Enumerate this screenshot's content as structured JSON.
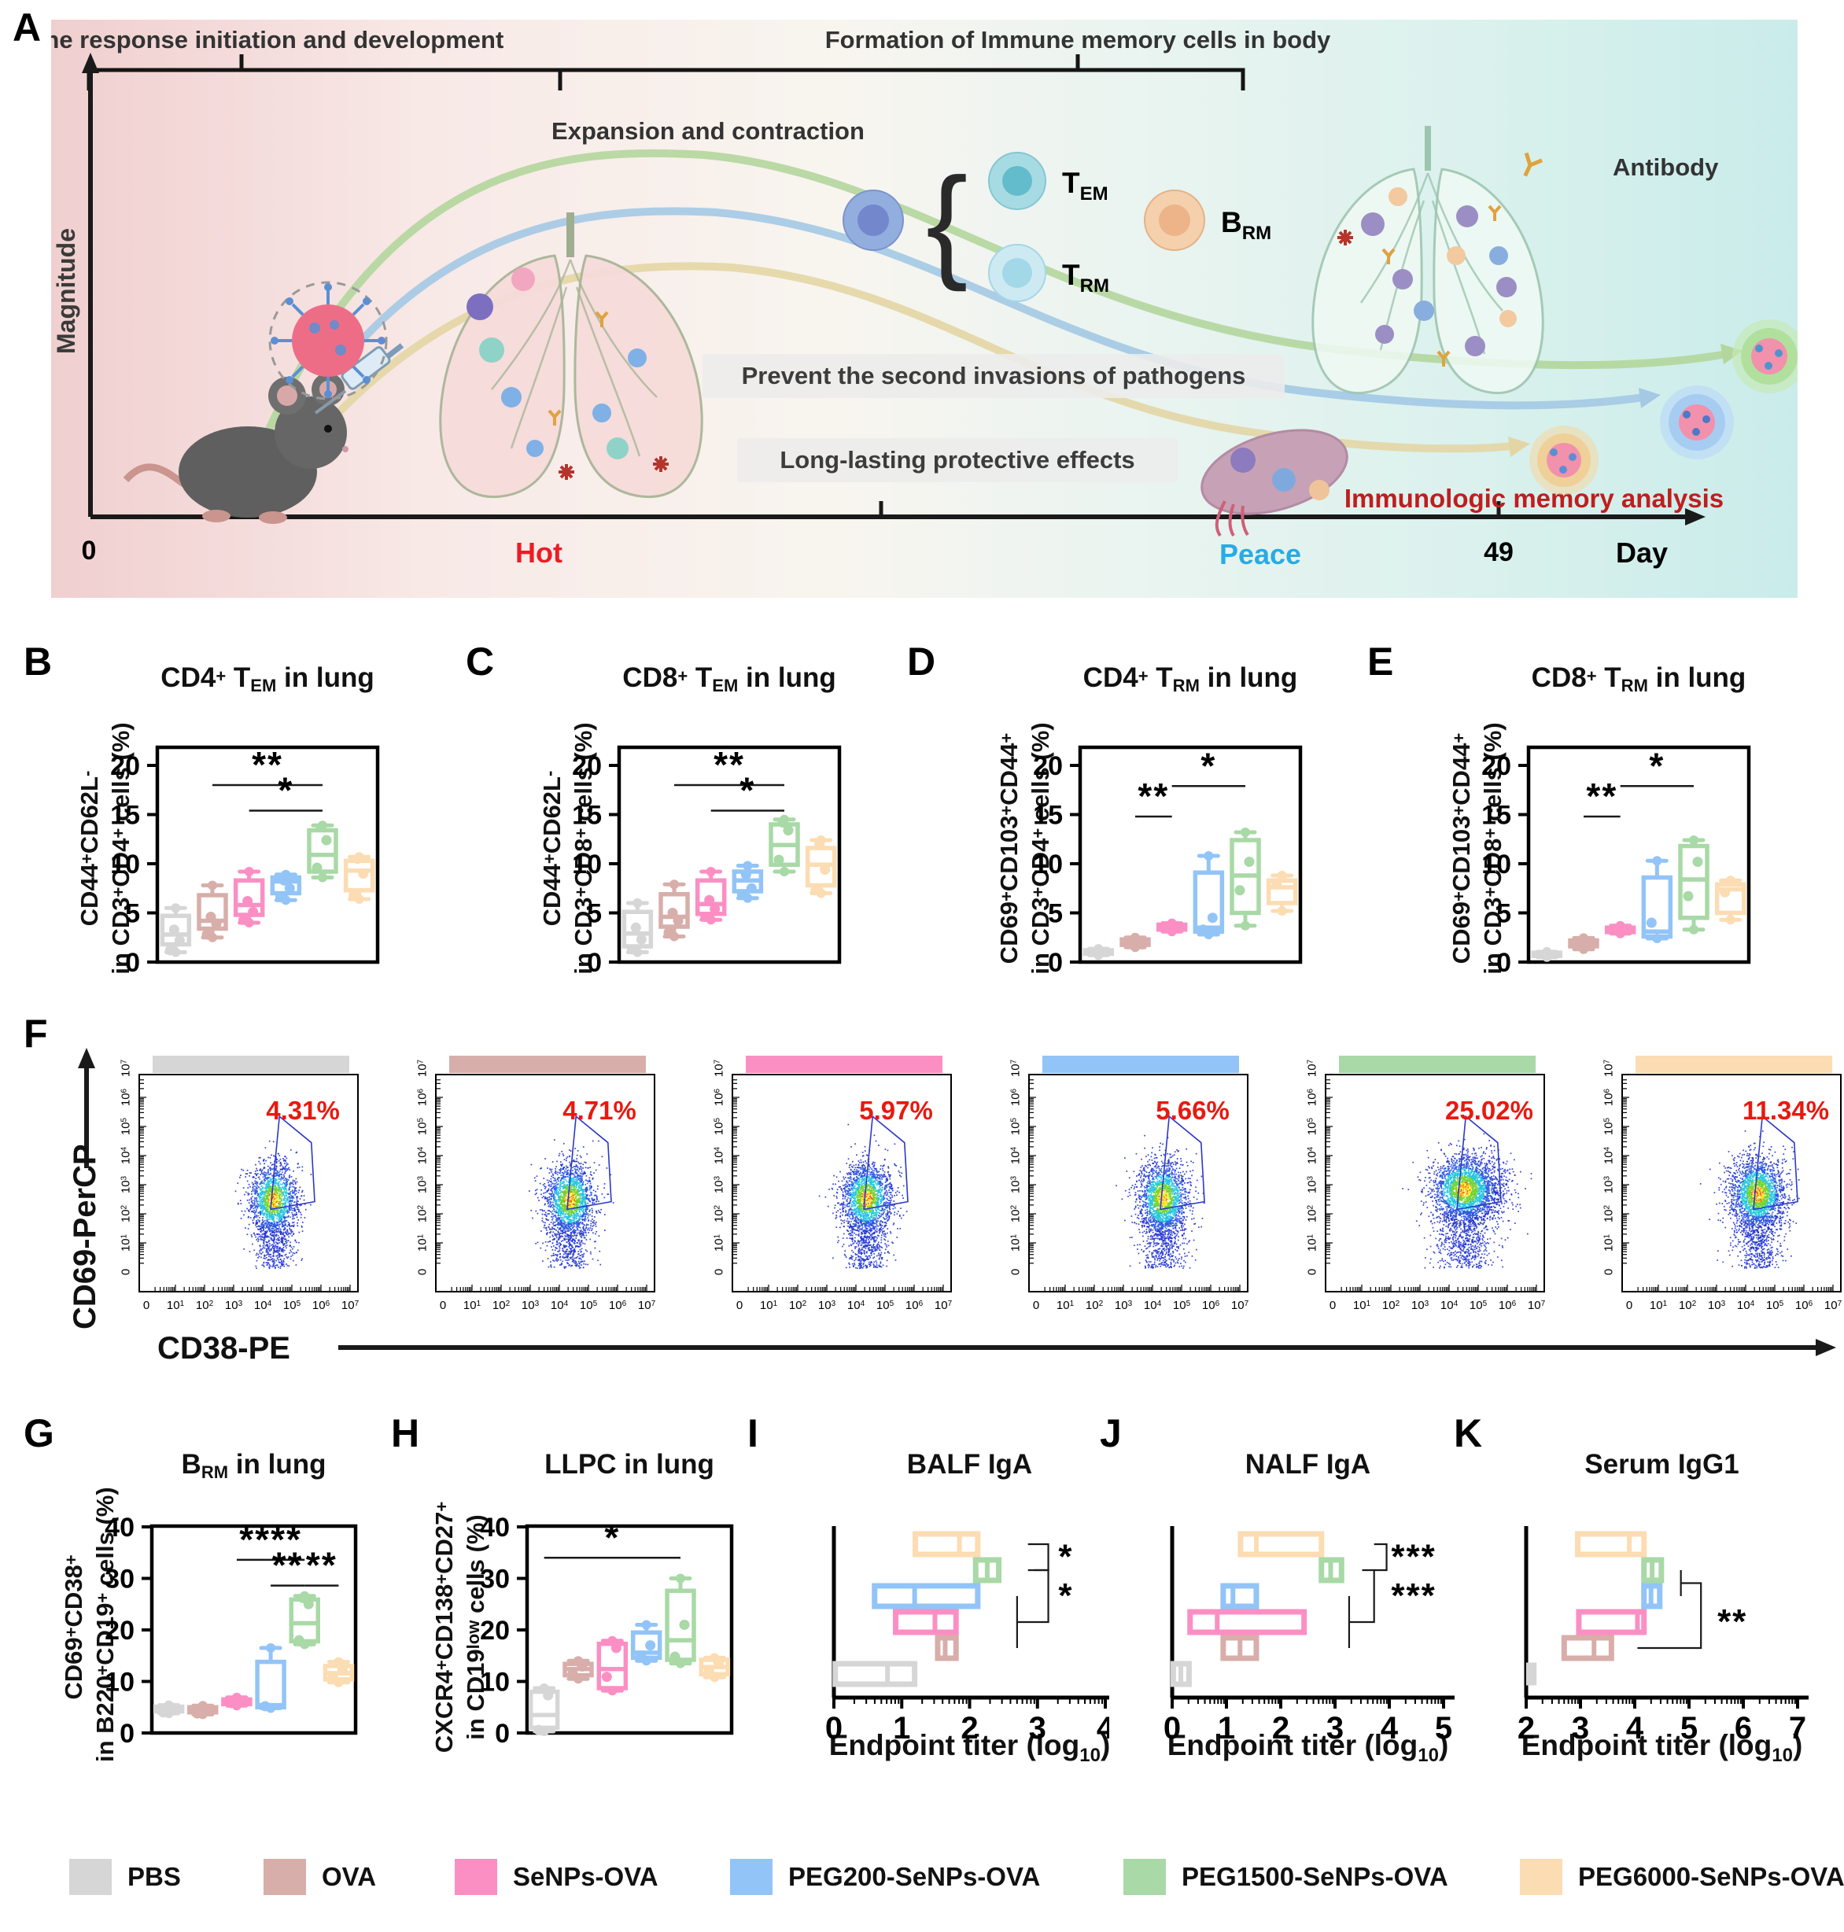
{
  "groups": [
    {
      "name": "PBS",
      "color": "#d6d6d6"
    },
    {
      "name": "OVA",
      "color": "#d8aeaa"
    },
    {
      "name": "SeNPs-OVA",
      "color": "#fb8fc3"
    },
    {
      "name": "PEG200-SeNPs-OVA",
      "color": "#92c4f7"
    },
    {
      "name": "PEG1500-SeNPs-OVA",
      "color": "#a8d9a6"
    },
    {
      "name": "PEG6000-SeNPs-OVA",
      "color": "#fcdcb2"
    }
  ],
  "panel_a": {
    "label": "A",
    "y_axis": "Magnitude",
    "heading_left": "Immune response initiation and development",
    "heading_right": "Formation of Immune memory cells in body",
    "expansion": "Expansion and contraction",
    "cells": {
      "tem": [
        "T",
        "EM"
      ],
      "trm": [
        "T",
        "RM"
      ],
      "brm": [
        "B",
        "RM"
      ]
    },
    "antibody": "Antibody",
    "box1": "Prevent the second invasions of pathogens",
    "box2": "Long-lasting protective effects",
    "memory": "Immunologic memory  analysis",
    "x_origin": "0",
    "hot": "Hot",
    "peace": "Peace",
    "day_num": "49",
    "day": "Day",
    "colors": {
      "hot": "#ed1c24",
      "peace": "#29abe2",
      "memory": "#bf1e1e"
    }
  },
  "flow": {
    "label": "F",
    "ylabel": "CD69-PerCP",
    "xlabel": "CD38-PE",
    "xticks": [
      "0",
      "10^{1}",
      "10^{2}",
      "10^{3}",
      "10^{4}",
      "10^{5}",
      "10^{6}",
      "10^{7}"
    ],
    "yticks": [
      "0",
      "10^{1}",
      "10^{2}",
      "10^{3}",
      "10^{4}",
      "10^{5}",
      "10^{6}",
      "10^{7}"
    ],
    "plots": [
      {
        "group": "PBS",
        "pct": "4.31%"
      },
      {
        "group": "OVA",
        "pct": "4.71%"
      },
      {
        "group": "SeNPs-OVA",
        "pct": "5.97%"
      },
      {
        "group": "PEG200-SeNPs-OVA",
        "pct": "5.66%"
      },
      {
        "group": "PEG1500-SeNPs-OVA",
        "pct": "25.02%"
      },
      {
        "group": "PEG6000-SeNPs-OVA",
        "pct": "11.34%"
      }
    ]
  },
  "chart_data": [
    {
      "panel": "B",
      "type": "box",
      "title": "CD4^{+} T_{EM} in lung",
      "ylabel": [
        "CD44^{+}CD62L^{-}",
        "in CD3^{+}CD4^{+} cells (%)"
      ],
      "ylim": [
        0,
        21.8
      ],
      "yticks": [
        0,
        5,
        10,
        15,
        20
      ],
      "categories": [
        "PBS",
        "OVA",
        "SeNPs-OVA",
        "PEG200-SeNPs-OVA",
        "PEG1500-SeNPs-OVA",
        "PEG6000-SeNPs-OVA"
      ],
      "boxes": [
        {
          "lo": 1.0,
          "q1": 1.8,
          "med": 2.8,
          "q3": 4.7,
          "hi": 5.5,
          "pts": [
            1.2,
            2.2,
            3.3
          ]
        },
        {
          "lo": 2.5,
          "q1": 3.4,
          "med": 4.2,
          "q3": 6.8,
          "hi": 7.8,
          "pts": [
            2.8,
            3.9,
            4.6
          ]
        },
        {
          "lo": 4.0,
          "q1": 4.8,
          "med": 5.8,
          "q3": 8.3,
          "hi": 9.2,
          "pts": [
            4.3,
            5.1,
            6.2
          ]
        },
        {
          "lo": 6.3,
          "q1": 7.0,
          "med": 8.2,
          "q3": 8.6,
          "hi": 8.9,
          "pts": [
            6.6,
            7.5,
            8.3
          ]
        },
        {
          "lo": 8.6,
          "q1": 9.2,
          "med": 10.9,
          "q3": 13.4,
          "hi": 13.9,
          "pts": [
            9.6,
            12.4,
            13.7
          ]
        },
        {
          "lo": 6.4,
          "q1": 7.3,
          "med": 9.3,
          "q3": 10.3,
          "hi": 10.7,
          "pts": [
            6.8,
            9.0,
            10.5
          ]
        }
      ],
      "sig": [
        {
          "a": 1,
          "b": 4,
          "y": 18.0,
          "label": "**"
        },
        {
          "a": 2,
          "b": 4,
          "y": 15.4,
          "label": "*"
        }
      ]
    },
    {
      "panel": "C",
      "type": "box",
      "title": "CD8^{+} T_{EM} in lung",
      "ylabel": [
        "CD44^{+}CD62L^{-}",
        "in CD3^{+}CD8^{+} cells (%)"
      ],
      "ylim": [
        0,
        21.8
      ],
      "yticks": [
        0,
        5,
        10,
        15,
        20
      ],
      "categories": [
        "PBS",
        "OVA",
        "SeNPs-OVA",
        "PEG200-SeNPs-OVA",
        "PEG1500-SeNPs-OVA",
        "PEG6000-SeNPs-OVA"
      ],
      "boxes": [
        {
          "lo": 1.0,
          "q1": 1.6,
          "med": 2.9,
          "q3": 5.1,
          "hi": 6.0,
          "pts": [
            1.3,
            2.3,
            3.5
          ]
        },
        {
          "lo": 2.6,
          "q1": 3.6,
          "med": 4.6,
          "q3": 6.9,
          "hi": 7.9,
          "pts": [
            3.0,
            4.2,
            5.0
          ]
        },
        {
          "lo": 4.3,
          "q1": 4.9,
          "med": 5.9,
          "q3": 8.3,
          "hi": 9.2,
          "pts": [
            4.6,
            5.4,
            6.3
          ]
        },
        {
          "lo": 6.5,
          "q1": 7.2,
          "med": 8.3,
          "q3": 9.2,
          "hi": 9.8,
          "pts": [
            6.9,
            7.5,
            8.9
          ]
        },
        {
          "lo": 9.2,
          "q1": 9.9,
          "med": 11.9,
          "q3": 14.0,
          "hi": 14.5,
          "pts": [
            10.4,
            13.4,
            14.2
          ]
        },
        {
          "lo": 7.0,
          "q1": 7.8,
          "med": 9.9,
          "q3": 11.6,
          "hi": 12.4,
          "pts": [
            7.3,
            9.4,
            12.0
          ]
        }
      ],
      "sig": [
        {
          "a": 1,
          "b": 4,
          "y": 18.0,
          "label": "**"
        },
        {
          "a": 2,
          "b": 4,
          "y": 15.4,
          "label": "*"
        }
      ]
    },
    {
      "panel": "D",
      "type": "box",
      "title": "CD4^{+} T_{RM} in lung",
      "ylabel": [
        "CD69^{+}CD103^{+}CD44^{+}",
        "in CD3^{+}CD4^{+} cells (%)"
      ],
      "ylim": [
        0,
        21.8
      ],
      "yticks": [
        0,
        5,
        10,
        15,
        20
      ],
      "categories": [
        "PBS",
        "OVA",
        "SeNPs-OVA",
        "PEG200-SeNPs-OVA",
        "PEG1500-SeNPs-OVA",
        "PEG6000-SeNPs-OVA"
      ],
      "boxes": [
        {
          "lo": 0.7,
          "q1": 0.85,
          "med": 1.0,
          "q3": 1.2,
          "hi": 1.35,
          "pts": []
        },
        {
          "lo": 1.5,
          "q1": 1.75,
          "med": 2.0,
          "q3": 2.3,
          "hi": 2.5,
          "pts": []
        },
        {
          "lo": 3.1,
          "q1": 3.3,
          "med": 3.5,
          "q3": 3.8,
          "hi": 3.95,
          "pts": []
        },
        {
          "lo": 2.8,
          "q1": 3.1,
          "med": 3.5,
          "q3": 9.1,
          "hi": 10.8,
          "pts": [
            3.3,
            4.5
          ]
        },
        {
          "lo": 3.7,
          "q1": 5.0,
          "med": 8.8,
          "q3": 12.4,
          "hi": 13.2,
          "pts": [
            7.3,
            10.2
          ]
        },
        {
          "lo": 5.2,
          "q1": 6.0,
          "med": 7.6,
          "q3": 8.3,
          "hi": 8.8,
          "pts": [
            7.9
          ]
        }
      ],
      "sig": [
        {
          "a": 1,
          "b": 2,
          "y": 14.8,
          "label": "**"
        },
        {
          "a": 2,
          "b": 4,
          "y": 17.9,
          "label": "*"
        }
      ]
    },
    {
      "panel": "E",
      "type": "box",
      "title": "CD8^{+} T_{RM} in lung",
      "ylabel": [
        "CD69^{+}CD103^{+}CD44^{+}",
        "in CD3^{+}CD8^{+} cells (%)"
      ],
      "ylim": [
        0,
        21.8
      ],
      "yticks": [
        0,
        5,
        10,
        15,
        20
      ],
      "categories": [
        "PBS",
        "OVA",
        "SeNPs-OVA",
        "PEG200-SeNPs-OVA",
        "PEG1500-SeNPs-OVA",
        "PEG6000-SeNPs-OVA"
      ],
      "boxes": [
        {
          "lo": 0.5,
          "q1": 0.62,
          "med": 0.78,
          "q3": 0.95,
          "hi": 1.05,
          "pts": []
        },
        {
          "lo": 1.3,
          "q1": 1.6,
          "med": 1.9,
          "q3": 2.2,
          "hi": 2.45,
          "pts": []
        },
        {
          "lo": 2.9,
          "q1": 3.05,
          "med": 3.25,
          "q3": 3.5,
          "hi": 3.7,
          "pts": []
        },
        {
          "lo": 2.4,
          "q1": 2.6,
          "med": 3.1,
          "q3": 8.6,
          "hi": 10.3,
          "pts": [
            4.0
          ]
        },
        {
          "lo": 3.3,
          "q1": 4.5,
          "med": 8.4,
          "q3": 11.8,
          "hi": 12.4,
          "pts": [
            6.7,
            10.2
          ]
        },
        {
          "lo": 4.3,
          "q1": 5.0,
          "med": 7.4,
          "q3": 7.9,
          "hi": 8.3,
          "pts": [
            7.1
          ]
        }
      ],
      "sig": [
        {
          "a": 1,
          "b": 2,
          "y": 14.8,
          "label": "**"
        },
        {
          "a": 2,
          "b": 4,
          "y": 17.9,
          "label": "*"
        }
      ]
    },
    {
      "panel": "G",
      "type": "box",
      "title": "B_{RM} in lung",
      "ylabel": [
        "CD69^{+}CD38^{+}",
        "in B220^{+}CD19^{+} cells (%)"
      ],
      "ylim": [
        0,
        41.9
      ],
      "yticks": [
        0,
        10,
        20,
        30,
        40
      ],
      "categories": [
        "PBS",
        "OVA",
        "SeNPs-OVA",
        "PEG200-SeNPs-OVA",
        "PEG1500-SeNPs-OVA",
        "PEG6000-SeNPs-OVA"
      ],
      "boxes": [
        {
          "lo": 3.8,
          "q1": 4.2,
          "med": 4.6,
          "q3": 5.1,
          "hi": 5.4,
          "pts": [
            4.0,
            4.9
          ]
        },
        {
          "lo": 3.6,
          "q1": 4.0,
          "med": 4.4,
          "q3": 5.0,
          "hi": 5.3,
          "pts": [
            3.8,
            4.7
          ]
        },
        {
          "lo": 5.3,
          "q1": 5.6,
          "med": 6.0,
          "q3": 6.5,
          "hi": 6.9,
          "pts": [
            5.8,
            6.3
          ]
        },
        {
          "lo": 4.8,
          "q1": 5.0,
          "med": 5.4,
          "q3": 13.8,
          "hi": 16.5,
          "pts": [
            5.2
          ]
        },
        {
          "lo": 17.2,
          "q1": 17.8,
          "med": 21.3,
          "q3": 25.9,
          "hi": 26.6,
          "pts": [
            18.0,
            25.0,
            26.2
          ]
        },
        {
          "lo": 9.8,
          "q1": 10.4,
          "med": 11.6,
          "q3": 13.0,
          "hi": 13.8,
          "pts": [
            10.9,
            12.2
          ]
        }
      ],
      "sig": [
        {
          "a": 2,
          "b": 4,
          "y": 33.6,
          "label": "****"
        },
        {
          "a": 3,
          "b": 4,
          "y": 28.6,
          "label": "**"
        },
        {
          "a": 4,
          "b": 5,
          "y": 28.6,
          "label": "**"
        }
      ]
    },
    {
      "panel": "H",
      "type": "box",
      "title": "LLPC in lung",
      "ylabel": [
        "CXCR4^{+}CD138^{+}CD27^{+}",
        "in CD19^{low} cells (%)"
      ],
      "ylim": [
        0,
        41.9
      ],
      "yticks": [
        0,
        10,
        20,
        30,
        40
      ],
      "categories": [
        "PBS",
        "OVA",
        "SeNPs-OVA",
        "PEG200-SeNPs-OVA",
        "PEG1500-SeNPs-OVA",
        "PEG6000-SeNPs-OVA"
      ],
      "boxes": [
        {
          "lo": 0.3,
          "q1": 1.0,
          "med": 3.5,
          "q3": 8.0,
          "hi": 8.7,
          "pts": [
            0.6,
            7.3
          ]
        },
        {
          "lo": 10.5,
          "q1": 11.2,
          "med": 12.4,
          "q3": 13.4,
          "hi": 14.0,
          "pts": [
            11.5,
            12.9
          ]
        },
        {
          "lo": 8.2,
          "q1": 8.7,
          "med": 12.4,
          "q3": 17.3,
          "hi": 17.9,
          "pts": [
            10.9,
            16.5
          ]
        },
        {
          "lo": 14.0,
          "q1": 14.6,
          "med": 15.6,
          "q3": 19.5,
          "hi": 21.0,
          "pts": [
            15.0,
            17.0
          ]
        },
        {
          "lo": 13.5,
          "q1": 14.2,
          "med": 18.0,
          "q3": 27.6,
          "hi": 30.0,
          "pts": [
            14.8,
            21.0
          ]
        },
        {
          "lo": 10.8,
          "q1": 11.4,
          "med": 12.8,
          "q3": 14.2,
          "hi": 14.6,
          "pts": [
            12.1,
            13.5
          ]
        }
      ],
      "sig": [
        {
          "a": 0,
          "b": 4,
          "y": 34.0,
          "label": "*"
        }
      ]
    },
    {
      "panel": "I",
      "type": "hbox",
      "title": "BALF  IgA",
      "xlabel": "Endpoint titer (log_{10})",
      "xlim": [
        0,
        4
      ],
      "xticks": [
        0,
        1,
        2,
        3,
        4
      ],
      "rows": [
        {
          "group": "PEG6000-SeNPs-OVA",
          "q1": 1.2,
          "med": 1.85,
          "q3": 2.12
        },
        {
          "group": "PEG1500-SeNPs-OVA",
          "q1": 2.09,
          "med": 2.26,
          "q3": 2.43
        },
        {
          "group": "PEG200-SeNPs-OVA",
          "q1": 0.6,
          "med": 1.19,
          "q3": 2.12
        },
        {
          "group": "SeNPs-OVA",
          "q1": 0.91,
          "med": 1.49,
          "q3": 1.8
        },
        {
          "group": "OVA",
          "q1": 1.53,
          "med": 1.64,
          "q3": 1.8
        },
        {
          "group": "PBS",
          "q1": 0.02,
          "med": 0.79,
          "q3": 1.19
        }
      ],
      "sig": [
        {
          "label": "*",
          "lx": 3.42,
          "lr": 0.5,
          "lines": [
            [
              [
                2.86,
                0
              ],
              [
                3.16,
                0
              ],
              [
                3.16,
                1
              ],
              [
                2.86,
                1
              ]
            ]
          ]
        },
        {
          "label": "*",
          "lx": 3.42,
          "lr": 2.0,
          "lines": [
            [
              [
                2.7,
                2
              ],
              [
                2.7,
                4
              ]
            ],
            [
              [
                2.95,
                1
              ],
              [
                3.16,
                1
              ],
              [
                3.16,
                3
              ],
              [
                2.7,
                3
              ]
            ]
          ]
        }
      ]
    },
    {
      "panel": "J",
      "type": "hbox",
      "title": "NALF  IgA",
      "xlabel": "Endpoint titer (log_{10})",
      "xlim": [
        0,
        5
      ],
      "xticks": [
        0,
        1,
        2,
        3,
        4,
        5
      ],
      "rows": [
        {
          "group": "PEG6000-SeNPs-OVA",
          "q1": 1.26,
          "med": 1.55,
          "q3": 2.75
        },
        {
          "group": "PEG1500-SeNPs-OVA",
          "q1": 2.75,
          "med": 2.92,
          "q3": 3.12
        },
        {
          "group": "PEG200-SeNPs-OVA",
          "q1": 0.94,
          "med": 1.12,
          "q3": 1.55
        },
        {
          "group": "SeNPs-OVA",
          "q1": 0.33,
          "med": 0.83,
          "q3": 2.43
        },
        {
          "group": "OVA",
          "q1": 0.94,
          "med": 1.25,
          "q3": 1.55
        },
        {
          "group": "PBS",
          "q1": 0.02,
          "med": 0.16,
          "q3": 0.31
        }
      ],
      "sig": [
        {
          "label": "***",
          "lx": 4.45,
          "lr": 0.5,
          "lines": [
            [
              [
                3.72,
                0
              ],
              [
                3.95,
                0
              ],
              [
                3.95,
                1
              ],
              [
                3.72,
                1
              ]
            ]
          ]
        },
        {
          "label": "***",
          "lx": 4.45,
          "lr": 2.0,
          "lines": [
            [
              [
                3.26,
                2
              ],
              [
                3.26,
                4
              ]
            ],
            [
              [
                3.5,
                1
              ],
              [
                3.72,
                1
              ],
              [
                3.72,
                3
              ],
              [
                3.26,
                3
              ]
            ]
          ]
        }
      ]
    },
    {
      "panel": "K",
      "type": "hbox",
      "title": "Serum  IgG1",
      "xlabel": "Endpoint titer (log_{10})",
      "xlim": [
        2,
        7
      ],
      "xticks": [
        2,
        3,
        4,
        5,
        6,
        7
      ],
      "rows": [
        {
          "group": "PEG6000-SeNPs-OVA",
          "q1": 2.95,
          "med": 3.9,
          "q3": 4.17
        },
        {
          "group": "PEG1500-SeNPs-OVA",
          "q1": 4.17,
          "med": 4.32,
          "q3": 4.49
        },
        {
          "group": "PEG200-SeNPs-OVA",
          "q1": 4.17,
          "med": 4.3,
          "q3": 4.46
        },
        {
          "group": "SeNPs-OVA",
          "q1": 2.97,
          "med": 4.05,
          "q3": 4.17
        },
        {
          "group": "OVA",
          "q1": 2.7,
          "med": 3.25,
          "q3": 3.57
        },
        {
          "group": "PBS",
          "q1": 2.02,
          "med": 2.1,
          "q3": 2.17,
          "fill": true
        }
      ],
      "sig": [
        {
          "label": "**",
          "lx": 5.8,
          "lr": 3.0,
          "lines": [
            [
              [
                4.85,
                1
              ],
              [
                4.85,
                2
              ]
            ],
            [
              [
                4.85,
                1.5
              ],
              [
                5.22,
                1.5
              ],
              [
                5.22,
                4
              ],
              [
                4.05,
                4
              ]
            ]
          ]
        }
      ]
    }
  ]
}
